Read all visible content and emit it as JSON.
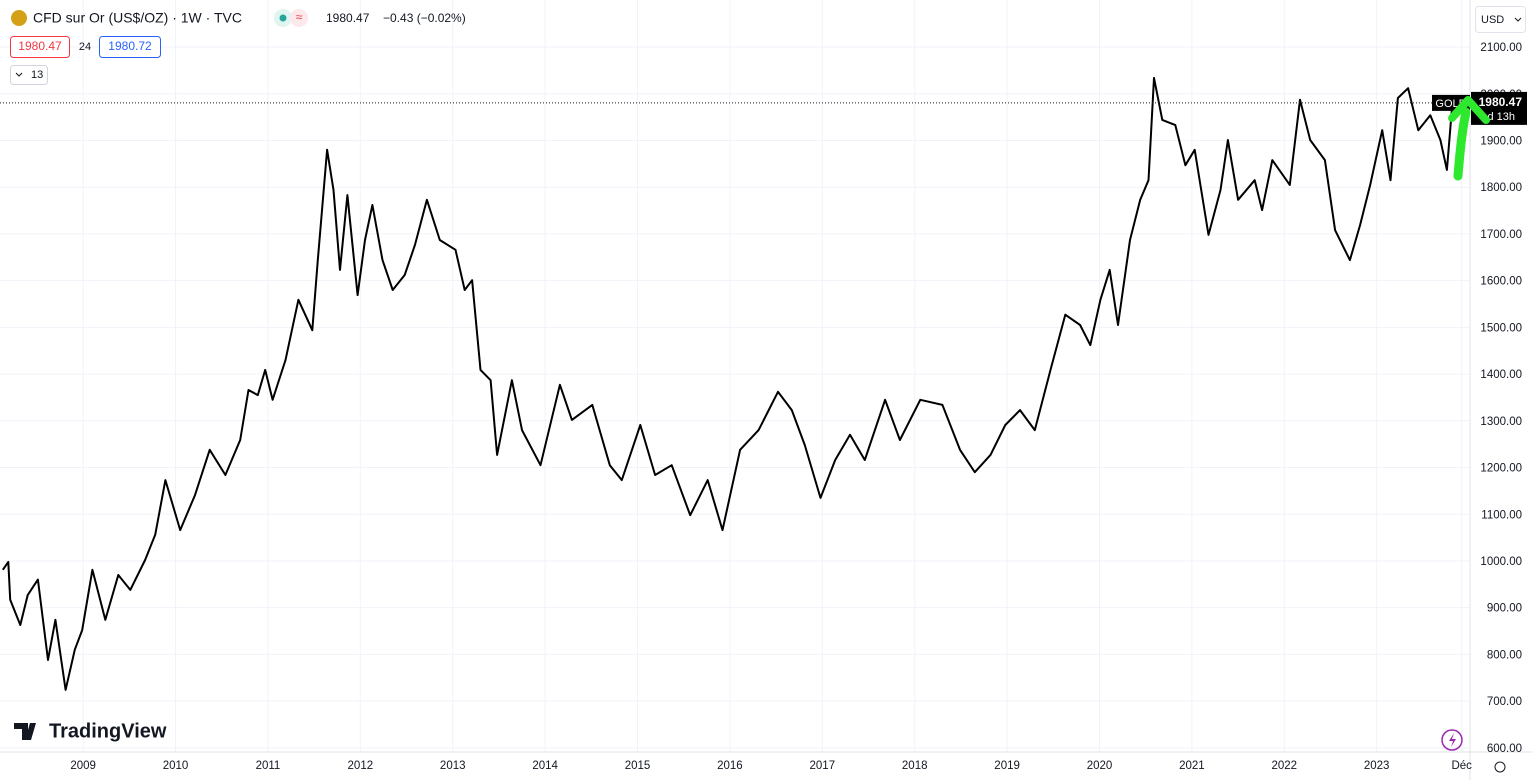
{
  "header": {
    "symbol": "CFD sur Or (US$/OZ) · 1W · TVC",
    "price": "1980.47",
    "change": "−0.43 (−0.02%)",
    "bid": "1980.47",
    "spread": "24",
    "ask": "1980.72",
    "indicators": "13",
    "currency": "USD",
    "logo": "TradingView"
  },
  "chart_data": {
    "type": "line",
    "x": [
      2008.13,
      2008.19,
      2008.21,
      2008.32,
      2008.4,
      2008.51,
      2008.62,
      2008.7,
      2008.81,
      2008.91,
      2008.99,
      2009.1,
      2009.24,
      2009.38,
      2009.51,
      2009.67,
      2009.78,
      2009.89,
      2010.05,
      2010.21,
      2010.37,
      2010.54,
      2010.7,
      2010.79,
      2010.89,
      2010.97,
      2011.05,
      2011.19,
      2011.33,
      2011.48,
      2011.54,
      2011.64,
      2011.71,
      2011.78,
      2011.86,
      2011.97,
      2012.05,
      2012.13,
      2012.24,
      2012.35,
      2012.48,
      2012.59,
      2012.72,
      2012.86,
      2013.03,
      2013.13,
      2013.21,
      2013.3,
      2013.41,
      2013.48,
      2013.64,
      2013.75,
      2013.95,
      2014.16,
      2014.29,
      2014.51,
      2014.7,
      2014.83,
      2015.03,
      2015.19,
      2015.37,
      2015.57,
      2015.76,
      2015.92,
      2016.11,
      2016.31,
      2016.52,
      2016.67,
      2016.81,
      2016.98,
      2017.14,
      2017.3,
      2017.46,
      2017.68,
      2017.84,
      2018.06,
      2018.3,
      2018.49,
      2018.65,
      2018.82,
      2018.98,
      2019.14,
      2019.3,
      2019.47,
      2019.63,
      2019.79,
      2019.9,
      2020.01,
      2020.11,
      2020.2,
      2020.33,
      2020.44,
      2020.53,
      2020.59,
      2020.68,
      2020.82,
      2020.93,
      2021.03,
      2021.18,
      2021.31,
      2021.39,
      2021.5,
      2021.68,
      2021.76,
      2021.87,
      2022.06,
      2022.17,
      2022.28,
      2022.44,
      2022.55,
      2022.71,
      2022.82,
      2022.93,
      2023.06,
      2023.15,
      2023.23,
      2023.34,
      2023.45,
      2023.58,
      2023.69,
      2023.76,
      2023.82
    ],
    "series": [
      {
        "name": "GOLD",
        "color": "#000000",
        "values": [
          981,
          998,
          917,
          863,
          927,
          960,
          788,
          874,
          724,
          810,
          852,
          981,
          874,
          970,
          938,
          1002,
          1056,
          1173,
          1066,
          1141,
          1238,
          1184,
          1259,
          1366,
          1355,
          1409,
          1345,
          1430,
          1559,
          1494,
          1644,
          1880,
          1794,
          1623,
          1783,
          1569,
          1687,
          1762,
          1644,
          1580,
          1612,
          1676,
          1773,
          1687,
          1666,
          1580,
          1601,
          1409,
          1387,
          1227,
          1387,
          1280,
          1205,
          1377,
          1302,
          1334,
          1205,
          1173,
          1291,
          1184,
          1205,
          1098,
          1173,
          1066,
          1238,
          1280,
          1362,
          1323,
          1248,
          1135,
          1216,
          1270,
          1216,
          1345,
          1259,
          1345,
          1334,
          1238,
          1190,
          1227,
          1291,
          1323,
          1280,
          1409,
          1527,
          1505,
          1462,
          1559,
          1623,
          1505,
          1687,
          1773,
          1815,
          2034,
          1944,
          1933,
          1847,
          1880,
          1698,
          1794,
          1901,
          1773,
          1815,
          1751,
          1858,
          1805,
          1987,
          1901,
          1858,
          1708,
          1644,
          1719,
          1805,
          1922,
          1815,
          1991,
          2012,
          1922,
          1954,
          1901,
          1837,
          1980
        ]
      }
    ],
    "last_price": 1980.47,
    "countdown": "d 13h",
    "xlim": [
      2008.1,
      2024.01
    ],
    "xticks": [
      2009,
      2010,
      2011,
      2012,
      2013,
      2014,
      2015,
      2016,
      2017,
      2018,
      2019,
      2020,
      2021,
      2022,
      2023,
      {
        "value": 2023.92,
        "label": "Déc"
      }
    ],
    "ylim": [
      590,
      2190
    ],
    "yticks": [
      {
        "value": 600,
        "label": "600.00"
      },
      {
        "value": 700,
        "label": "700.00"
      },
      {
        "value": 800,
        "label": "800.00"
      },
      {
        "value": 900,
        "label": "900.00"
      },
      {
        "value": 1000,
        "label": "1000.00"
      },
      {
        "value": 1100,
        "label": "1100.00"
      },
      {
        "value": 1200,
        "label": "1200.00"
      },
      {
        "value": 1300,
        "label": "1300.00"
      },
      {
        "value": 1400,
        "label": "1400.00"
      },
      {
        "value": 1500,
        "label": "1500.00"
      },
      {
        "value": 1600,
        "label": "1600.00"
      },
      {
        "value": 1700,
        "label": "1700.00"
      },
      {
        "value": 1800,
        "label": "1800.00"
      },
      {
        "value": 1900,
        "label": "1900.00"
      },
      {
        "value": 2000,
        "label": "2000.00"
      },
      {
        "value": 2100,
        "label": "2100.00"
      }
    ],
    "grid": true
  }
}
